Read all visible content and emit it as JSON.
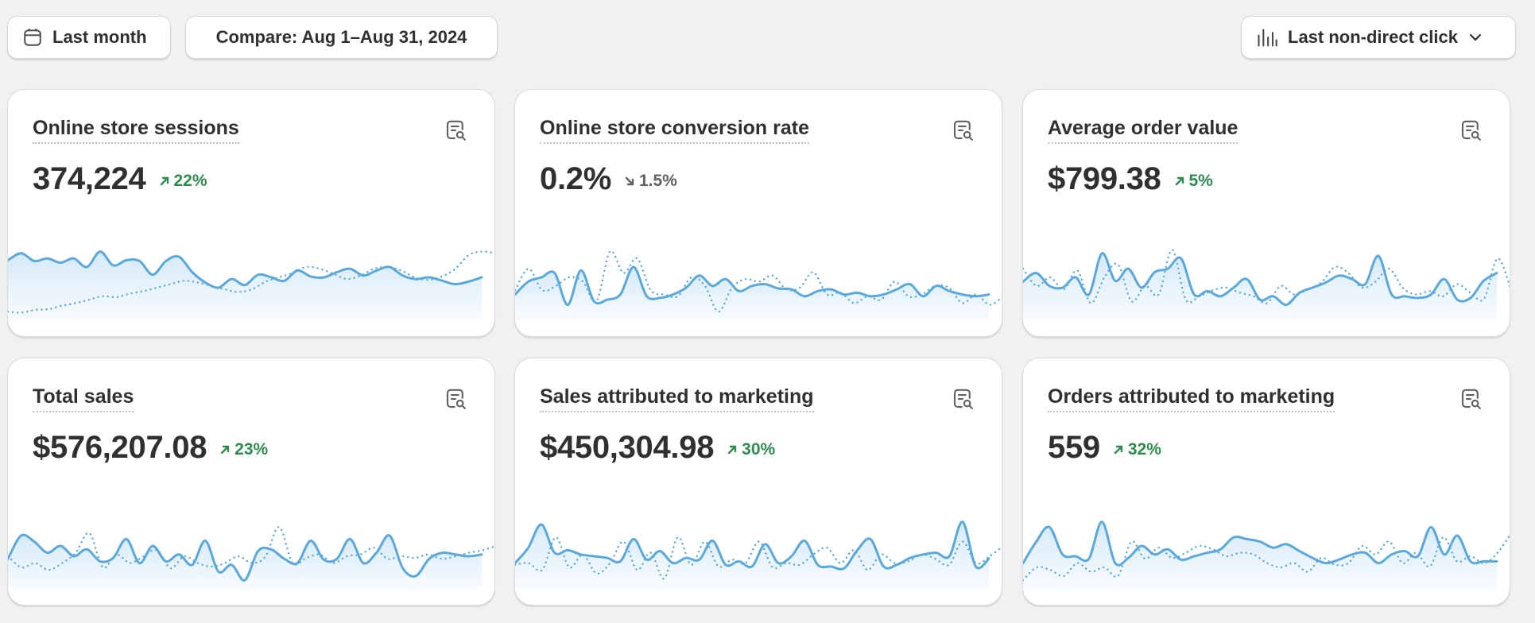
{
  "toolbar": {
    "period_label": "Last month",
    "compare_label": "Compare: Aug 1–Aug 31, 2024",
    "attribution_label": "Last non-direct click",
    "icons": {
      "period": "calendar-icon",
      "attribution": "bar-chart-icon",
      "attribution_chevron": "chevron-down-icon"
    }
  },
  "colors": {
    "line": "#5ba8dc",
    "fill_top": "#d3e8f8",
    "up": "#2f8a4e",
    "down": "#616161"
  },
  "cards": [
    {
      "title": "Online store sessions",
      "value": "374,224",
      "delta": "22%",
      "trend": "up",
      "icon": "report-search-icon",
      "chart_data": {
        "type": "area",
        "series": [
          {
            "values": [
              0.7,
              0.78,
              0.69,
              0.72,
              0.67,
              0.72,
              0.62,
              0.8,
              0.64,
              0.7,
              0.69,
              0.53,
              0.69,
              0.74,
              0.56,
              0.44,
              0.38,
              0.48,
              0.41,
              0.53,
              0.5,
              0.46,
              0.58,
              0.51,
              0.5,
              0.56,
              0.6,
              0.52,
              0.58,
              0.62,
              0.52,
              0.48,
              0.5,
              0.46,
              0.42,
              0.45,
              0.5
            ]
          },
          {
            "style": "dotted",
            "values": [
              0.1,
              0.09,
              0.12,
              0.13,
              0.17,
              0.2,
              0.24,
              0.28,
              0.27,
              0.31,
              0.34,
              0.38,
              0.42,
              0.46,
              0.44,
              0.4,
              0.36,
              0.33,
              0.36,
              0.45,
              0.5,
              0.55,
              0.62,
              0.6,
              0.54,
              0.48,
              0.52,
              0.6,
              0.62,
              0.58,
              0.5,
              0.47,
              0.51,
              0.6,
              0.76,
              0.8,
              0.78
            ]
          }
        ]
      }
    },
    {
      "title": "Online store conversion rate",
      "value": "0.2%",
      "delta": "1.5%",
      "trend": "down",
      "icon": "report-search-icon",
      "chart_data": {
        "type": "area",
        "series": [
          {
            "values": [
              0.3,
              0.45,
              0.5,
              0.55,
              0.18,
              0.58,
              0.22,
              0.24,
              0.3,
              0.62,
              0.28,
              0.26,
              0.3,
              0.38,
              0.52,
              0.4,
              0.48,
              0.34,
              0.4,
              0.42,
              0.37,
              0.36,
              0.28,
              0.34,
              0.36,
              0.3,
              0.32,
              0.28,
              0.3,
              0.36,
              0.42,
              0.28,
              0.4,
              0.34,
              0.3,
              0.28,
              0.3
            ]
          },
          {
            "style": "dotted",
            "values": [
              0.35,
              0.6,
              0.35,
              0.4,
              0.5,
              0.45,
              0.22,
              0.8,
              0.55,
              0.72,
              0.35,
              0.3,
              0.28,
              0.5,
              0.4,
              0.1,
              0.38,
              0.48,
              0.45,
              0.52,
              0.36,
              0.38,
              0.56,
              0.3,
              0.32,
              0.2,
              0.28,
              0.24,
              0.45,
              0.28,
              0.3,
              0.4,
              0.38,
              0.2,
              0.3,
              0.18,
              0.28
            ]
          }
        ]
      }
    },
    {
      "title": "Average order value",
      "value": "$799.38",
      "delta": "5%",
      "trend": "up",
      "icon": "report-search-icon",
      "chart_data": {
        "type": "area",
        "series": [
          {
            "values": [
              0.45,
              0.55,
              0.4,
              0.38,
              0.5,
              0.3,
              0.78,
              0.46,
              0.6,
              0.38,
              0.56,
              0.6,
              0.72,
              0.3,
              0.34,
              0.28,
              0.38,
              0.48,
              0.24,
              0.28,
              0.18,
              0.32,
              0.38,
              0.44,
              0.52,
              0.48,
              0.42,
              0.75,
              0.3,
              0.28,
              0.26,
              0.3,
              0.48,
              0.24,
              0.26,
              0.46,
              0.55
            ]
          },
          {
            "style": "dotted",
            "values": [
              0.6,
              0.4,
              0.5,
              0.36,
              0.58,
              0.2,
              0.5,
              0.65,
              0.22,
              0.4,
              0.3,
              0.82,
              0.24,
              0.28,
              0.35,
              0.38,
              0.32,
              0.28,
              0.2,
              0.4,
              0.3,
              0.36,
              0.44,
              0.62,
              0.55,
              0.38,
              0.45,
              0.6,
              0.38,
              0.3,
              0.34,
              0.28,
              0.42,
              0.32,
              0.25,
              0.72,
              0.35
            ]
          }
        ]
      }
    },
    {
      "title": "Total sales",
      "value": "$576,207.08",
      "delta": "23%",
      "trend": "up",
      "icon": "report-search-icon",
      "chart_data": {
        "type": "area",
        "series": [
          {
            "values": [
              0.35,
              0.62,
              0.55,
              0.42,
              0.5,
              0.38,
              0.46,
              0.32,
              0.36,
              0.58,
              0.3,
              0.5,
              0.32,
              0.4,
              0.28,
              0.56,
              0.2,
              0.28,
              0.1,
              0.44,
              0.46,
              0.35,
              0.3,
              0.56,
              0.34,
              0.35,
              0.58,
              0.3,
              0.42,
              0.62,
              0.24,
              0.15,
              0.35,
              0.42,
              0.4,
              0.38,
              0.4
            ]
          },
          {
            "style": "dotted",
            "values": [
              0.38,
              0.25,
              0.3,
              0.22,
              0.3,
              0.42,
              0.65,
              0.25,
              0.4,
              0.3,
              0.38,
              0.45,
              0.24,
              0.38,
              0.3,
              0.26,
              0.3,
              0.38,
              0.3,
              0.38,
              0.72,
              0.3,
              0.36,
              0.4,
              0.3,
              0.38,
              0.4,
              0.48,
              0.35,
              0.38,
              0.36,
              0.4,
              0.35,
              0.38,
              0.42,
              0.45,
              0.5
            ]
          }
        ]
      }
    },
    {
      "title": "Sales attributed to marketing",
      "value": "$450,304.98",
      "delta": "30%",
      "trend": "up",
      "icon": "report-search-icon",
      "chart_data": {
        "type": "area",
        "series": [
          {
            "values": [
              0.3,
              0.48,
              0.75,
              0.42,
              0.45,
              0.4,
              0.38,
              0.36,
              0.32,
              0.58,
              0.34,
              0.44,
              0.3,
              0.36,
              0.34,
              0.56,
              0.28,
              0.32,
              0.26,
              0.52,
              0.3,
              0.38,
              0.56,
              0.28,
              0.26,
              0.24,
              0.45,
              0.58,
              0.26,
              0.28,
              0.36,
              0.4,
              0.42,
              0.38,
              0.78,
              0.26,
              0.35
            ]
          },
          {
            "style": "dotted",
            "values": [
              0.28,
              0.3,
              0.22,
              0.6,
              0.25,
              0.4,
              0.18,
              0.3,
              0.55,
              0.22,
              0.42,
              0.12,
              0.6,
              0.28,
              0.55,
              0.26,
              0.34,
              0.3,
              0.55,
              0.25,
              0.3,
              0.28,
              0.4,
              0.48,
              0.3,
              0.45,
              0.22,
              0.4,
              0.3,
              0.32,
              0.4,
              0.35,
              0.28,
              0.55,
              0.3,
              0.38,
              0.5
            ]
          }
        ]
      }
    },
    {
      "title": "Orders attributed to marketing",
      "value": "559",
      "delta": "32%",
      "trend": "up",
      "icon": "report-search-icon",
      "chart_data": {
        "type": "area",
        "series": [
          {
            "values": [
              0.3,
              0.55,
              0.72,
              0.4,
              0.38,
              0.35,
              0.78,
              0.3,
              0.36,
              0.5,
              0.4,
              0.46,
              0.34,
              0.38,
              0.42,
              0.46,
              0.6,
              0.58,
              0.55,
              0.48,
              0.52,
              0.44,
              0.36,
              0.3,
              0.34,
              0.4,
              0.42,
              0.3,
              0.4,
              0.44,
              0.38,
              0.72,
              0.4,
              0.62,
              0.32,
              0.32,
              0.32
            ]
          },
          {
            "style": "dotted",
            "values": [
              0.1,
              0.25,
              0.22,
              0.15,
              0.3,
              0.2,
              0.25,
              0.15,
              0.55,
              0.35,
              0.48,
              0.36,
              0.42,
              0.5,
              0.46,
              0.38,
              0.42,
              0.4,
              0.3,
              0.25,
              0.3,
              0.2,
              0.36,
              0.28,
              0.3,
              0.5,
              0.4,
              0.55,
              0.3,
              0.42,
              0.26,
              0.6,
              0.32,
              0.38,
              0.3,
              0.42,
              0.65
            ]
          }
        ]
      }
    }
  ]
}
